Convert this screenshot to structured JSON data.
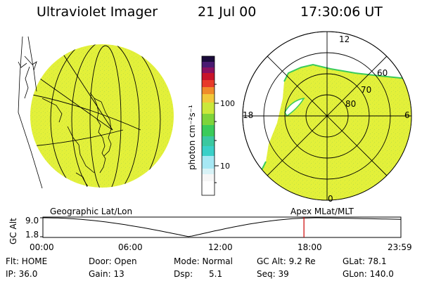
{
  "header": {
    "instrument": "Ultraviolet Imager",
    "date": "21 Jul 00",
    "time": "17:30:06 UT"
  },
  "colorbar": {
    "unit_label": "photon cm⁻²s⁻¹",
    "ticks": [
      "100",
      "10"
    ]
  },
  "polar_plot": {
    "mlt_labels": [
      "12",
      "18",
      "6",
      "0"
    ],
    "lat_labels": [
      "60",
      "70",
      "80"
    ]
  },
  "map_labels": {
    "left": "Geographic Lat/Lon",
    "right": "Apex MLat/MLT"
  },
  "altitude_plot": {
    "ylabel": "GC Alt",
    "ytick_top": "9.0",
    "ytick_bottom": "1.8",
    "xticks": [
      "00:00",
      "06:00",
      "12:00",
      "18:00",
      "23:59"
    ],
    "current_time_hours": 17.5
  },
  "info_row1": {
    "flt": "Flt: HOME",
    "door": "Door: Open",
    "mode": "Mode: Normal",
    "gc_alt": "GC Alt: 9.2 Re",
    "glat": "GLat:  78.1"
  },
  "info_row2": {
    "ip": "IP: 36.0",
    "gain": "Gain: 13",
    "dsp": "Dsp:      5.1",
    "seq": "Seq: 39",
    "glon": "GLon: 140.0"
  },
  "colors": {
    "aurora_fill": "#e3f03a",
    "colorbar": [
      "#f6f6f6",
      "#a6e8f4",
      "#3ad0c8",
      "#3acb5a",
      "#7ed43a",
      "#cbe83a",
      "#f2c83a",
      "#f08c2a",
      "#e83a2a",
      "#c8142a",
      "#8a1060",
      "#4a1a72",
      "#1a0a3a"
    ],
    "time_marker": "#cc0000"
  }
}
